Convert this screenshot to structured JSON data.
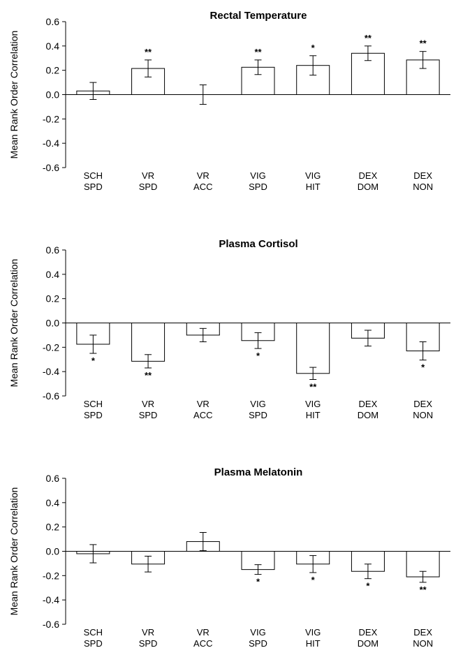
{
  "ylabel": "Mean Rank Order Correlation",
  "categories": [
    {
      "line1": "SCH",
      "line2": "SPD"
    },
    {
      "line1": "VR",
      "line2": "SPD"
    },
    {
      "line1": "VR",
      "line2": "ACC"
    },
    {
      "line1": "VIG",
      "line2": "SPD"
    },
    {
      "line1": "VIG",
      "line2": "HIT"
    },
    {
      "line1": "DEX",
      "line2": "DOM"
    },
    {
      "line1": "DEX",
      "line2": "NON"
    }
  ],
  "yticks": [
    "0.6",
    "0.4",
    "0.2",
    "0.0",
    "-0.2",
    "-0.4",
    "-0.6"
  ],
  "chart_data": [
    {
      "type": "bar",
      "title": "Rectal Temperature",
      "ylabel": "Mean Rank Order Correlation",
      "categories": [
        "SCH SPD",
        "VR SPD",
        "VR ACC",
        "VIG SPD",
        "VIG HIT",
        "DEX DOM",
        "DEX NON"
      ],
      "values": [
        0.03,
        0.215,
        0.0,
        0.225,
        0.24,
        0.34,
        0.285
      ],
      "errors": [
        0.07,
        0.07,
        0.08,
        0.06,
        0.08,
        0.06,
        0.07
      ],
      "significance": [
        "",
        "**",
        "",
        "**",
        "*",
        "**",
        "**"
      ],
      "ylim": [
        -0.6,
        0.6
      ],
      "grid": false
    },
    {
      "type": "bar",
      "title": "Plasma Cortisol",
      "ylabel": "Mean Rank Order Correlation",
      "categories": [
        "SCH SPD",
        "VR SPD",
        "VR ACC",
        "VIG SPD",
        "VIG HIT",
        "DEX DOM",
        "DEX NON"
      ],
      "values": [
        -0.175,
        -0.315,
        -0.1,
        -0.145,
        -0.415,
        -0.125,
        -0.23
      ],
      "errors": [
        0.075,
        0.055,
        0.055,
        0.065,
        0.05,
        0.065,
        0.075
      ],
      "significance": [
        "*",
        "**",
        "",
        "*",
        "**",
        "",
        "*"
      ],
      "ylim": [
        -0.6,
        0.6
      ],
      "grid": false
    },
    {
      "type": "bar",
      "title": "Plasma Melatonin",
      "ylabel": "Mean Rank Order Correlation",
      "categories": [
        "SCH SPD",
        "VR SPD",
        "VR ACC",
        "VIG SPD",
        "VIG HIT",
        "DEX DOM",
        "DEX NON"
      ],
      "values": [
        -0.02,
        -0.105,
        0.08,
        -0.15,
        -0.105,
        -0.165,
        -0.21
      ],
      "errors": [
        0.075,
        0.065,
        0.075,
        0.04,
        0.07,
        0.06,
        0.045
      ],
      "significance": [
        "",
        "",
        "",
        "*",
        "*",
        "*",
        "**"
      ],
      "ylim": [
        -0.6,
        0.6
      ],
      "grid": false
    }
  ]
}
